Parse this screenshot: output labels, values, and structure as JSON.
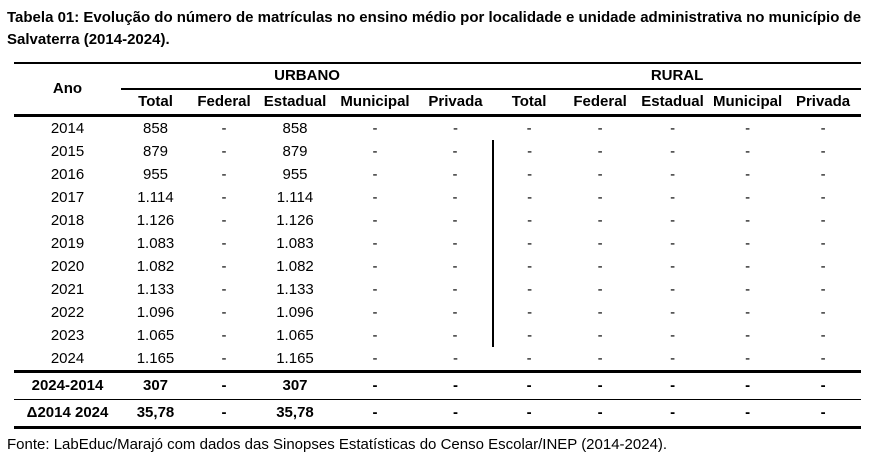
{
  "title": "Tabela 01: Evolução do número de matrículas no ensino médio por localidade e unidade administrativa no município de Salvaterra (2014-2024).",
  "source": "Fonte: LabEduc/Marajó com dados das Sinopses Estatísticas do Censo Escolar/INEP (2014-2024).",
  "table": {
    "row_header": "Ano",
    "groups": [
      {
        "label": "URBANO",
        "columns": [
          "Total",
          "Federal",
          "Estadual",
          "Municipal",
          "Privada"
        ]
      },
      {
        "label": "RURAL",
        "columns": [
          "Total",
          "Federal",
          "Estadual",
          "Municipal",
          "Privada"
        ]
      }
    ],
    "rows": [
      {
        "label": "2014",
        "kind": "data",
        "vline": false,
        "values": [
          "858",
          "-",
          "858",
          "-",
          "-",
          "-",
          "-",
          "-",
          "-",
          "-"
        ]
      },
      {
        "label": "2015",
        "kind": "data",
        "vline": true,
        "values": [
          "879",
          "-",
          "879",
          "-",
          "-",
          "-",
          "-",
          "-",
          "-",
          "-"
        ]
      },
      {
        "label": "2016",
        "kind": "data",
        "vline": true,
        "values": [
          "955",
          "-",
          "955",
          "-",
          "-",
          "-",
          "-",
          "-",
          "-",
          "-"
        ]
      },
      {
        "label": "2017",
        "kind": "data",
        "vline": true,
        "values": [
          "1.114",
          "-",
          "1.114",
          "-",
          "-",
          "-",
          "-",
          "-",
          "-",
          "-"
        ]
      },
      {
        "label": "2018",
        "kind": "data",
        "vline": true,
        "values": [
          "1.126",
          "-",
          "1.126",
          "-",
          "-",
          "-",
          "-",
          "-",
          "-",
          "-"
        ]
      },
      {
        "label": "2019",
        "kind": "data",
        "vline": true,
        "values": [
          "1.083",
          "-",
          "1.083",
          "-",
          "-",
          "-",
          "-",
          "-",
          "-",
          "-"
        ]
      },
      {
        "label": "2020",
        "kind": "data",
        "vline": true,
        "values": [
          "1.082",
          "-",
          "1.082",
          "-",
          "-",
          "-",
          "-",
          "-",
          "-",
          "-"
        ]
      },
      {
        "label": "2021",
        "kind": "data",
        "vline": true,
        "values": [
          "1.133",
          "-",
          "1.133",
          "-",
          "-",
          "-",
          "-",
          "-",
          "-",
          "-"
        ]
      },
      {
        "label": "2022",
        "kind": "data",
        "vline": true,
        "values": [
          "1.096",
          "-",
          "1.096",
          "-",
          "-",
          "-",
          "-",
          "-",
          "-",
          "-"
        ]
      },
      {
        "label": "2023",
        "kind": "data",
        "vline": true,
        "values": [
          "1.065",
          "-",
          "1.065",
          "-",
          "-",
          "-",
          "-",
          "-",
          "-",
          "-"
        ]
      },
      {
        "label": "2024",
        "kind": "data",
        "vline": false,
        "values": [
          "1.165",
          "-",
          "1.165",
          "-",
          "-",
          "-",
          "-",
          "-",
          "-",
          "-"
        ]
      },
      {
        "label": "2024-2014",
        "kind": "diff",
        "vline": false,
        "values": [
          "307",
          "-",
          "307",
          "-",
          "-",
          "-",
          "-",
          "-",
          "-",
          "-"
        ]
      },
      {
        "label": "Δ2014 2024",
        "kind": "delta",
        "vline": false,
        "values": [
          "35,78",
          "-",
          "35,78",
          "-",
          "-",
          "-",
          "-",
          "-",
          "-",
          "-"
        ]
      }
    ]
  }
}
